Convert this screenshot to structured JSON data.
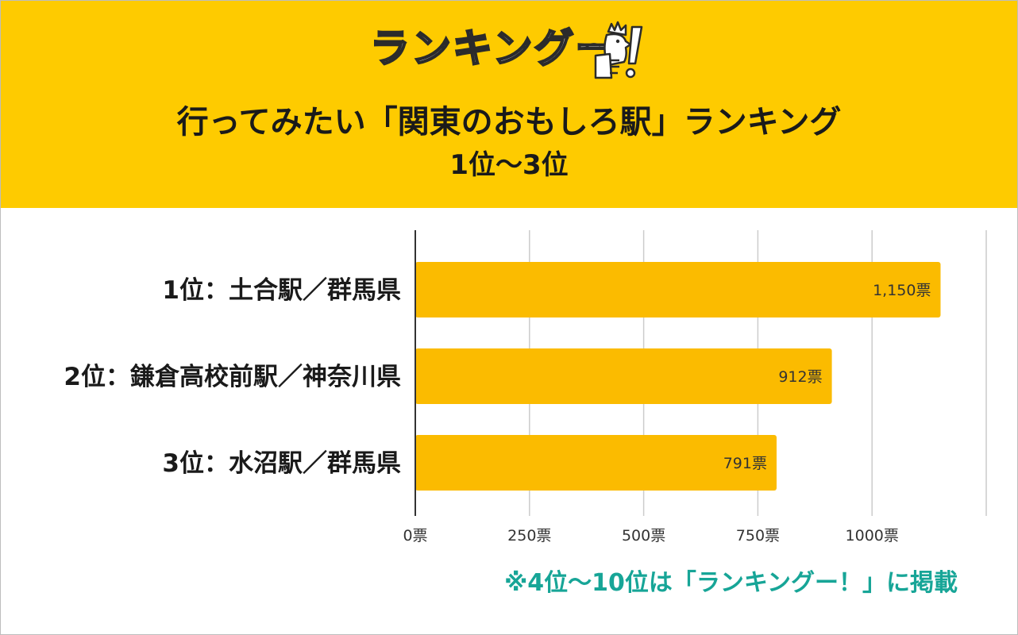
{
  "header": {
    "logo_text": "ランキングー",
    "logo_icon": "thumbs-up-chicken-mascot",
    "title": "行ってみたい「関東のおもしろ駅」ランキング",
    "subtitle": "1位〜3位",
    "background_color": "#fecb00"
  },
  "chart_data": {
    "type": "bar",
    "orientation": "horizontal",
    "categories": [
      "1位：土合駅／群馬県",
      "2位：鎌倉高校前駅／神奈川県",
      "3位：水沼駅／群馬県"
    ],
    "values": [
      1150,
      912,
      791
    ],
    "value_labels": [
      "1,150票",
      "912票",
      "791票"
    ],
    "xlim": [
      0,
      1250
    ],
    "ticks": [
      0,
      250,
      500,
      750,
      1000
    ],
    "tick_labels": [
      "0票",
      "250票",
      "500票",
      "750票",
      "1000票"
    ],
    "grid": true,
    "bar_color": "#fbbb00",
    "legend": "none"
  },
  "footer": {
    "note": "※4位〜10位は「ランキングー！」に掲載",
    "note_color": "#17a597"
  }
}
